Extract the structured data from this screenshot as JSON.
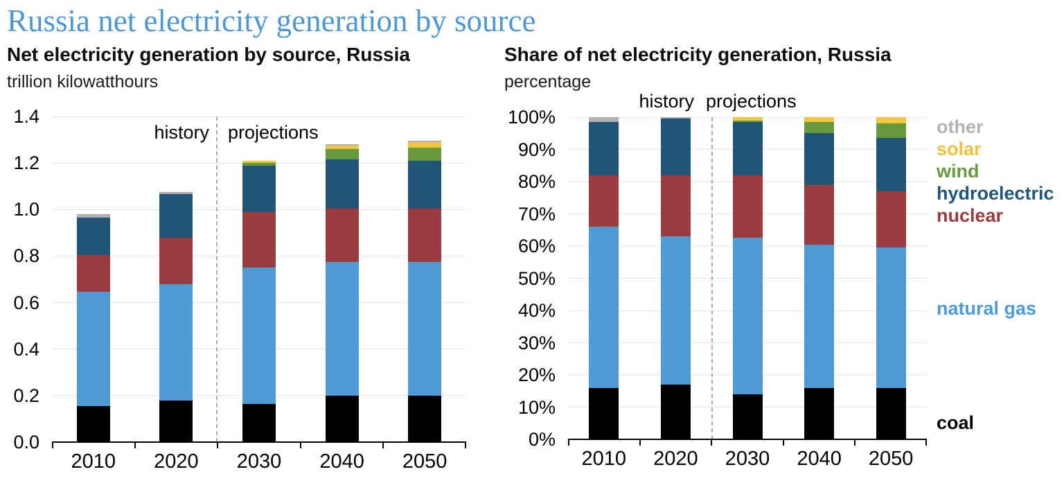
{
  "header": {
    "title": "Russia net electricity generation by source"
  },
  "chart_data": [
    {
      "type": "bar",
      "stacked": true,
      "title": "Net electricity generation by source, Russia",
      "unit": "trillion kilowatthours",
      "categories": [
        "2010",
        "2020",
        "2030",
        "2040",
        "2050"
      ],
      "series": [
        {
          "name": "coal",
          "color": "#000000",
          "values": [
            0.155,
            0.18,
            0.165,
            0.2,
            0.2
          ]
        },
        {
          "name": "natural gas",
          "color": "#4E9AD3",
          "values": [
            0.49,
            0.5,
            0.585,
            0.575,
            0.575
          ]
        },
        {
          "name": "nuclear",
          "color": "#9A3B40",
          "values": [
            0.16,
            0.2,
            0.24,
            0.23,
            0.23
          ]
        },
        {
          "name": "hydroelectric",
          "color": "#215578",
          "values": [
            0.16,
            0.185,
            0.2,
            0.21,
            0.205
          ]
        },
        {
          "name": "wind",
          "color": "#69993F",
          "values": [
            0,
            0,
            0.01,
            0.045,
            0.055
          ]
        },
        {
          "name": "solar",
          "color": "#F2C640",
          "values": [
            0,
            0,
            0.01,
            0.015,
            0.025
          ]
        },
        {
          "name": "other",
          "color": "#B1B1B4",
          "values": [
            0.015,
            0.01,
            0,
            0.005,
            0.005
          ]
        }
      ],
      "ylim": [
        0,
        1.4
      ],
      "yticks": [
        "1.4",
        "1.2",
        "1.0",
        "0.8",
        "0.6",
        "0.4",
        "0.2",
        "0.0"
      ],
      "grid": true,
      "annotations": {
        "history": "history",
        "projections": "projections"
      },
      "divider_between": [
        "2020",
        "2030"
      ]
    },
    {
      "type": "bar",
      "stacked": true,
      "title": "Share of net electricity generation, Russia",
      "unit": "percentage",
      "categories": [
        "2010",
        "2020",
        "2030",
        "2040",
        "2050"
      ],
      "series": [
        {
          "name": "coal",
          "color": "#000000",
          "values": [
            16,
            17,
            14,
            16,
            16
          ]
        },
        {
          "name": "natural gas",
          "color": "#4E9AD3",
          "values": [
            50,
            46,
            48.5,
            44.5,
            43.5
          ]
        },
        {
          "name": "nuclear",
          "color": "#9A3B40",
          "values": [
            16,
            19,
            19.5,
            18.5,
            17.5
          ]
        },
        {
          "name": "hydroelectric",
          "color": "#215578",
          "values": [
            16.5,
            17.5,
            16.5,
            16,
            16.5
          ]
        },
        {
          "name": "wind",
          "color": "#69993F",
          "values": [
            0,
            0,
            0.5,
            3.5,
            4.5
          ]
        },
        {
          "name": "solar",
          "color": "#F2C640",
          "values": [
            0,
            0,
            1,
            1.5,
            2
          ]
        },
        {
          "name": "other",
          "color": "#B1B1B4",
          "values": [
            1.5,
            0.5,
            0,
            0,
            0
          ]
        }
      ],
      "ylim": [
        0,
        100
      ],
      "yticks": [
        "100%",
        "90%",
        "80%",
        "70%",
        "60%",
        "50%",
        "40%",
        "30%",
        "20%",
        "10%",
        "0%"
      ],
      "grid": true,
      "annotations": {
        "history": "history",
        "projections": "projections"
      },
      "divider_between": [
        "2020",
        "2030"
      ]
    }
  ],
  "legend": {
    "items": [
      {
        "label": "other",
        "color": "#B3B3B3"
      },
      {
        "label": "solar",
        "color": "#F0C23C"
      },
      {
        "label": "wind",
        "color": "#689A40"
      },
      {
        "label": "hydroelectric",
        "color": "#1F5778"
      },
      {
        "label": "nuclear",
        "color": "#9A3B40"
      },
      {
        "label": "natural gas",
        "color": "#4E9AD3"
      },
      {
        "label": "coal",
        "color": "#000000"
      }
    ]
  }
}
